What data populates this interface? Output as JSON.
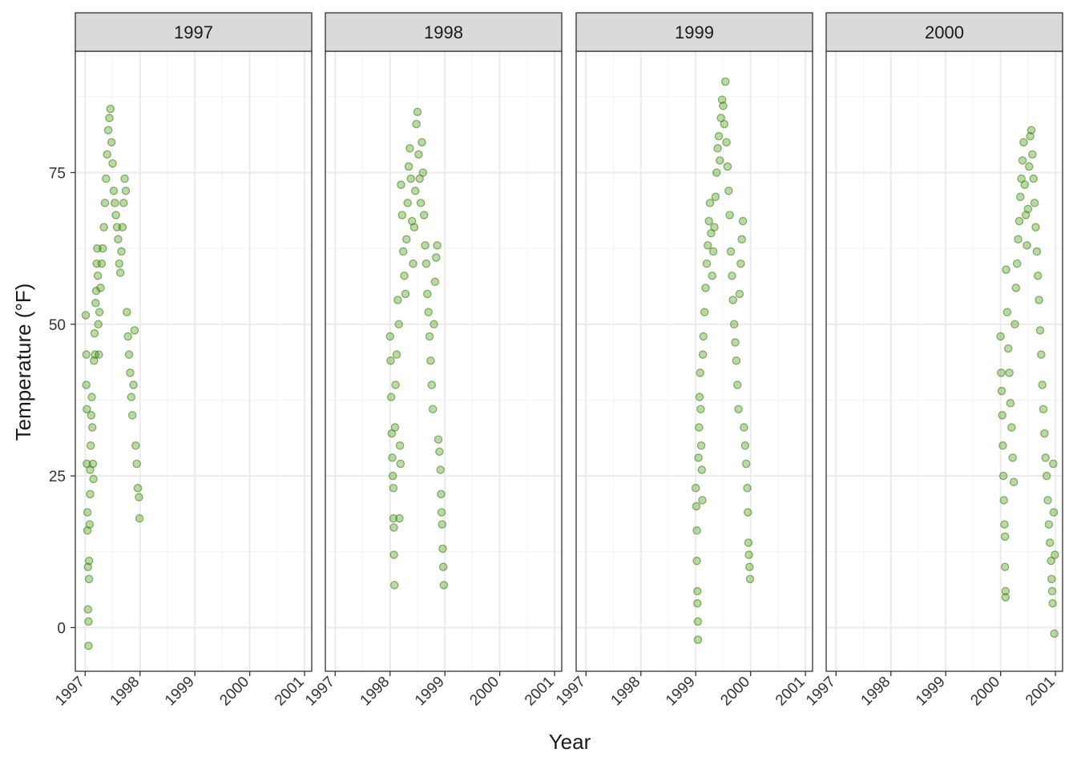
{
  "chart_data": {
    "type": "scatter",
    "facet_by": "Year",
    "panels": [
      {
        "label": "1997",
        "points": [
          [
            1997.01,
            51.5
          ],
          [
            1997.02,
            45.0
          ],
          [
            1997.02,
            40.0
          ],
          [
            1997.03,
            36.0
          ],
          [
            1997.03,
            27.0
          ],
          [
            1997.04,
            19.0
          ],
          [
            1997.04,
            16.0
          ],
          [
            1997.05,
            10.0
          ],
          [
            1997.05,
            3.0
          ],
          [
            1997.06,
            1.0
          ],
          [
            1997.06,
            -3.0
          ],
          [
            1997.07,
            8.0
          ],
          [
            1997.07,
            11.0
          ],
          [
            1997.08,
            17.0
          ],
          [
            1997.09,
            22.0
          ],
          [
            1997.09,
            26.0
          ],
          [
            1997.1,
            30.0
          ],
          [
            1997.11,
            35.0
          ],
          [
            1997.12,
            38.0
          ],
          [
            1997.13,
            33.0
          ],
          [
            1997.14,
            27.0
          ],
          [
            1997.15,
            24.5
          ],
          [
            1997.16,
            44.0
          ],
          [
            1997.17,
            48.5
          ],
          [
            1997.18,
            45.0
          ],
          [
            1997.19,
            53.5
          ],
          [
            1997.2,
            55.5
          ],
          [
            1997.21,
            60.0
          ],
          [
            1997.22,
            62.5
          ],
          [
            1997.23,
            58.0
          ],
          [
            1997.24,
            50.0
          ],
          [
            1997.25,
            45.0
          ],
          [
            1997.26,
            52.0
          ],
          [
            1997.28,
            56.0
          ],
          [
            1997.3,
            60.0
          ],
          [
            1997.32,
            62.5
          ],
          [
            1997.34,
            66.0
          ],
          [
            1997.36,
            70.0
          ],
          [
            1997.38,
            74.0
          ],
          [
            1997.4,
            78.0
          ],
          [
            1997.42,
            82.0
          ],
          [
            1997.44,
            84.0
          ],
          [
            1997.46,
            85.5
          ],
          [
            1997.48,
            80.0
          ],
          [
            1997.5,
            76.5
          ],
          [
            1997.52,
            72.0
          ],
          [
            1997.54,
            70.0
          ],
          [
            1997.56,
            68.0
          ],
          [
            1997.58,
            66.0
          ],
          [
            1997.6,
            64.0
          ],
          [
            1997.62,
            60.0
          ],
          [
            1997.64,
            58.5
          ],
          [
            1997.66,
            62.0
          ],
          [
            1997.68,
            66.0
          ],
          [
            1997.7,
            70.0
          ],
          [
            1997.72,
            74.0
          ],
          [
            1997.74,
            72.0
          ],
          [
            1997.76,
            52.0
          ],
          [
            1997.78,
            48.0
          ],
          [
            1997.8,
            45.0
          ],
          [
            1997.82,
            42.0
          ],
          [
            1997.84,
            38.0
          ],
          [
            1997.86,
            35.0
          ],
          [
            1997.88,
            40.0
          ],
          [
            1997.9,
            49.0
          ],
          [
            1997.92,
            30.0
          ],
          [
            1997.94,
            27.0
          ],
          [
            1997.96,
            23.0
          ],
          [
            1997.98,
            21.5
          ],
          [
            1997.99,
            18.0
          ]
        ]
      },
      {
        "label": "1998",
        "points": [
          [
            1998.0,
            48.0
          ],
          [
            1998.01,
            44.0
          ],
          [
            1998.02,
            38.0
          ],
          [
            1998.03,
            32.0
          ],
          [
            1998.04,
            28.0
          ],
          [
            1998.05,
            25.0
          ],
          [
            1998.06,
            23.0
          ],
          [
            1998.06,
            18.0
          ],
          [
            1998.07,
            16.5
          ],
          [
            1998.07,
            12.0
          ],
          [
            1998.08,
            7.0
          ],
          [
            1998.09,
            33.0
          ],
          [
            1998.1,
            40.0
          ],
          [
            1998.12,
            45.0
          ],
          [
            1998.14,
            54.0
          ],
          [
            1998.16,
            50.0
          ],
          [
            1998.17,
            18.0
          ],
          [
            1998.18,
            30.0
          ],
          [
            1998.19,
            27.0
          ],
          [
            1998.2,
            73.0
          ],
          [
            1998.22,
            68.0
          ],
          [
            1998.24,
            62.0
          ],
          [
            1998.26,
            58.0
          ],
          [
            1998.28,
            55.0
          ],
          [
            1998.3,
            64.0
          ],
          [
            1998.32,
            70.0
          ],
          [
            1998.34,
            76.0
          ],
          [
            1998.36,
            79.0
          ],
          [
            1998.38,
            74.0
          ],
          [
            1998.4,
            67.0
          ],
          [
            1998.42,
            60.0
          ],
          [
            1998.44,
            66.0
          ],
          [
            1998.46,
            72.0
          ],
          [
            1998.48,
            83.0
          ],
          [
            1998.5,
            85.0
          ],
          [
            1998.52,
            78.0
          ],
          [
            1998.54,
            74.0
          ],
          [
            1998.56,
            70.0
          ],
          [
            1998.58,
            80.0
          ],
          [
            1998.6,
            75.0
          ],
          [
            1998.62,
            68.0
          ],
          [
            1998.64,
            63.0
          ],
          [
            1998.66,
            60.0
          ],
          [
            1998.68,
            55.0
          ],
          [
            1998.7,
            52.0
          ],
          [
            1998.72,
            48.0
          ],
          [
            1998.74,
            44.0
          ],
          [
            1998.76,
            40.0
          ],
          [
            1998.78,
            36.0
          ],
          [
            1998.8,
            50.0
          ],
          [
            1998.82,
            57.0
          ],
          [
            1998.84,
            61.0
          ],
          [
            1998.86,
            63.0
          ],
          [
            1998.88,
            31.0
          ],
          [
            1998.9,
            29.0
          ],
          [
            1998.92,
            26.0
          ],
          [
            1998.93,
            22.0
          ],
          [
            1998.94,
            19.0
          ],
          [
            1998.95,
            17.0
          ],
          [
            1998.96,
            13.0
          ],
          [
            1998.97,
            10.0
          ],
          [
            1998.98,
            7.0
          ]
        ]
      },
      {
        "label": "1999",
        "points": [
          [
            1999.0,
            23.0
          ],
          [
            1999.01,
            20.0
          ],
          [
            1999.02,
            16.0
          ],
          [
            1999.02,
            11.0
          ],
          [
            1999.03,
            6.0
          ],
          [
            1999.03,
            4.0
          ],
          [
            1999.04,
            1.0
          ],
          [
            1999.04,
            -2.0
          ],
          [
            1999.05,
            28.0
          ],
          [
            1999.06,
            33.0
          ],
          [
            1999.07,
            38.0
          ],
          [
            1999.08,
            42.0
          ],
          [
            1999.09,
            36.0
          ],
          [
            1999.1,
            30.0
          ],
          [
            1999.11,
            26.0
          ],
          [
            1999.12,
            21.0
          ],
          [
            1999.13,
            45.0
          ],
          [
            1999.14,
            48.0
          ],
          [
            1999.16,
            52.0
          ],
          [
            1999.18,
            56.0
          ],
          [
            1999.2,
            60.0
          ],
          [
            1999.22,
            63.0
          ],
          [
            1999.24,
            67.0
          ],
          [
            1999.26,
            70.0
          ],
          [
            1999.28,
            65.0
          ],
          [
            1999.3,
            58.0
          ],
          [
            1999.32,
            62.0
          ],
          [
            1999.34,
            66.0
          ],
          [
            1999.36,
            71.0
          ],
          [
            1999.38,
            75.0
          ],
          [
            1999.4,
            79.0
          ],
          [
            1999.42,
            81.0
          ],
          [
            1999.44,
            77.0
          ],
          [
            1999.46,
            84.0
          ],
          [
            1999.48,
            87.0
          ],
          [
            1999.5,
            86.0
          ],
          [
            1999.52,
            83.0
          ],
          [
            1999.54,
            90.0
          ],
          [
            1999.56,
            80.0
          ],
          [
            1999.58,
            76.0
          ],
          [
            1999.6,
            72.0
          ],
          [
            1999.62,
            68.0
          ],
          [
            1999.64,
            62.0
          ],
          [
            1999.66,
            58.0
          ],
          [
            1999.68,
            54.0
          ],
          [
            1999.7,
            50.0
          ],
          [
            1999.72,
            47.0
          ],
          [
            1999.74,
            44.0
          ],
          [
            1999.76,
            40.0
          ],
          [
            1999.78,
            36.0
          ],
          [
            1999.8,
            55.0
          ],
          [
            1999.82,
            60.0
          ],
          [
            1999.84,
            64.0
          ],
          [
            1999.86,
            67.0
          ],
          [
            1999.88,
            33.0
          ],
          [
            1999.9,
            30.0
          ],
          [
            1999.92,
            27.0
          ],
          [
            1999.94,
            23.0
          ],
          [
            1999.95,
            19.0
          ],
          [
            1999.96,
            14.0
          ],
          [
            1999.97,
            12.0
          ],
          [
            1999.98,
            10.0
          ],
          [
            1999.99,
            8.0
          ]
        ]
      },
      {
        "label": "2000",
        "points": [
          [
            2000.0,
            48.0
          ],
          [
            2000.01,
            42.0
          ],
          [
            2000.02,
            39.0
          ],
          [
            2000.03,
            35.0
          ],
          [
            2000.04,
            30.0
          ],
          [
            2000.05,
            25.0
          ],
          [
            2000.06,
            21.0
          ],
          [
            2000.07,
            17.0
          ],
          [
            2000.08,
            15.0
          ],
          [
            2000.08,
            10.0
          ],
          [
            2000.09,
            6.0
          ],
          [
            2000.09,
            5.0
          ],
          [
            2000.1,
            59.0
          ],
          [
            2000.12,
            52.0
          ],
          [
            2000.14,
            46.0
          ],
          [
            2000.16,
            42.0
          ],
          [
            2000.18,
            37.0
          ],
          [
            2000.2,
            33.0
          ],
          [
            2000.22,
            28.0
          ],
          [
            2000.24,
            24.0
          ],
          [
            2000.26,
            50.0
          ],
          [
            2000.28,
            56.0
          ],
          [
            2000.3,
            60.0
          ],
          [
            2000.32,
            64.0
          ],
          [
            2000.34,
            67.0
          ],
          [
            2000.36,
            71.0
          ],
          [
            2000.38,
            74.0
          ],
          [
            2000.4,
            77.0
          ],
          [
            2000.42,
            80.0
          ],
          [
            2000.44,
            73.0
          ],
          [
            2000.46,
            68.0
          ],
          [
            2000.48,
            63.0
          ],
          [
            2000.5,
            69.0
          ],
          [
            2000.52,
            76.0
          ],
          [
            2000.54,
            81.0
          ],
          [
            2000.56,
            82.0
          ],
          [
            2000.58,
            78.0
          ],
          [
            2000.6,
            74.0
          ],
          [
            2000.62,
            70.0
          ],
          [
            2000.64,
            66.0
          ],
          [
            2000.66,
            62.0
          ],
          [
            2000.68,
            58.0
          ],
          [
            2000.7,
            54.0
          ],
          [
            2000.72,
            49.0
          ],
          [
            2000.74,
            45.0
          ],
          [
            2000.76,
            40.0
          ],
          [
            2000.78,
            36.0
          ],
          [
            2000.8,
            32.0
          ],
          [
            2000.82,
            28.0
          ],
          [
            2000.84,
            25.0
          ],
          [
            2000.86,
            21.0
          ],
          [
            2000.88,
            17.0
          ],
          [
            2000.9,
            14.0
          ],
          [
            2000.92,
            11.0
          ],
          [
            2000.93,
            8.0
          ],
          [
            2000.94,
            6.0
          ],
          [
            2000.95,
            4.0
          ],
          [
            2000.96,
            27.0
          ],
          [
            2000.97,
            19.0
          ],
          [
            2000.98,
            -1.0
          ],
          [
            2000.99,
            12.0
          ]
        ]
      }
    ],
    "x_axis": {
      "label": "Year",
      "ticks": [
        "1997",
        "1998",
        "1999",
        "2000",
        "2001"
      ],
      "tick_values": [
        1997,
        1998,
        1999,
        2000,
        2001
      ],
      "range": [
        1996.82,
        2001.13
      ]
    },
    "y_axis": {
      "label": "Temperature (°F)",
      "ticks": [
        "0",
        "25",
        "50",
        "75"
      ],
      "tick_values": [
        0,
        25,
        50,
        75
      ],
      "range": [
        -7.2,
        95.0
      ]
    },
    "grid": true,
    "colors": {
      "point_fill": "#3f8f0a",
      "point_stroke": "#2f7a00",
      "strip_fill": "#d9d9d9",
      "panel_border": "#333333",
      "grid_major": "#ebebeb",
      "grid_minor": "#f3f3f3"
    }
  }
}
